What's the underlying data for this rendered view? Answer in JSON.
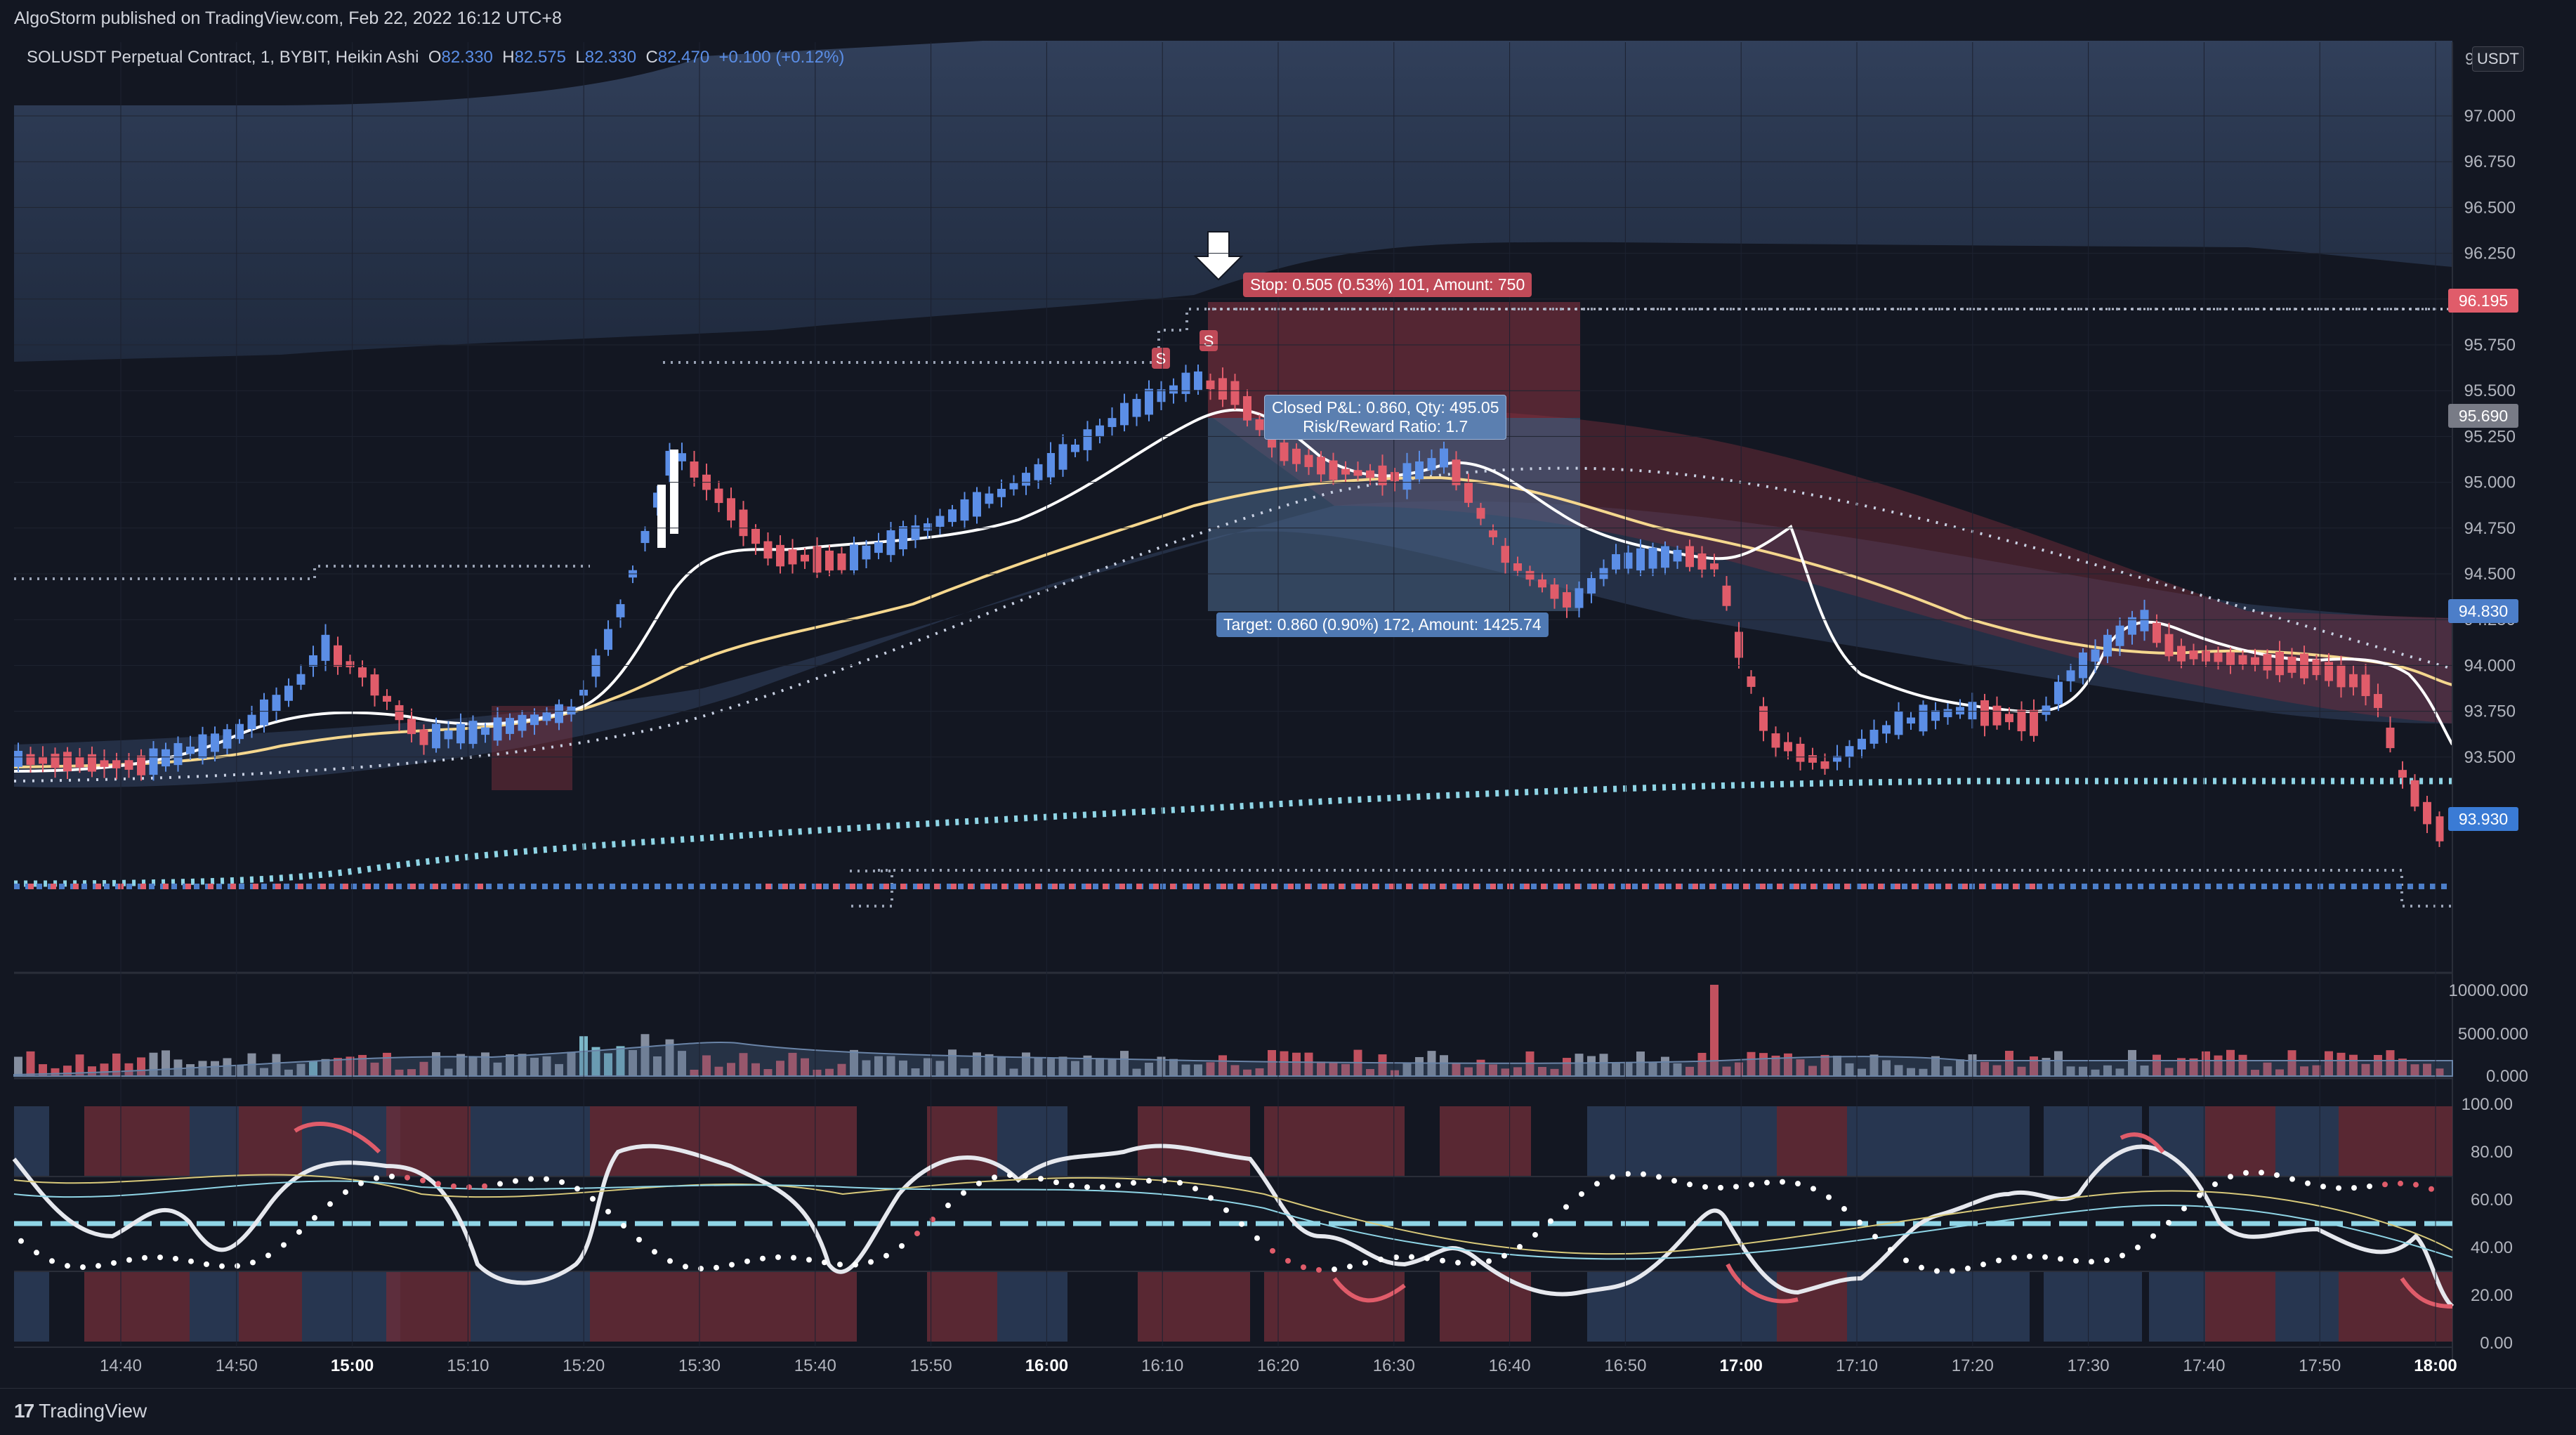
{
  "header": {
    "published": "AlgoStorm published on TradingView.com, Feb 22, 2022 16:12 UTC+8"
  },
  "legend": {
    "symbol": "SOLUSDT Perpetual Contract, 1, BYBIT, Heikin Ashi",
    "o_label": "O",
    "o": "82.330",
    "h_label": "H",
    "h": "82.575",
    "l_label": "L",
    "l": "82.330",
    "c_label": "C",
    "c": "82.470",
    "change": "+0.100 (+0.12%)"
  },
  "currency": "USDT",
  "price_axis": {
    "ticks": [
      "97.000",
      "96.750",
      "96.500",
      "96.250",
      "96.000",
      "95.750",
      "95.500",
      "95.250",
      "95.000",
      "94.750",
      "94.500",
      "94.250",
      "94.000",
      "93.750",
      "93.500"
    ],
    "top_partial": "97",
    "labels": [
      {
        "text": "96.195",
        "color": "#e05c6a"
      },
      {
        "text": "95.690",
        "color": "#787b86"
      },
      {
        "text": "94.830",
        "color": "#4c7ec9"
      },
      {
        "text": "93.930",
        "color": "#3a7bd5"
      }
    ]
  },
  "volume_axis": {
    "ticks": [
      "10000.000",
      "5000.000",
      "0.000"
    ]
  },
  "osc_axis": {
    "ticks": [
      "100.00",
      "80.00",
      "60.00",
      "40.00",
      "20.00",
      "0.00"
    ]
  },
  "time_axis": {
    "labels": [
      "14:40",
      "14:50",
      "15:00",
      "15:10",
      "15:20",
      "15:30",
      "15:40",
      "15:50",
      "16:00",
      "16:10",
      "16:20",
      "16:30",
      "16:40",
      "16:50",
      "17:00",
      "17:10",
      "17:20",
      "17:30",
      "17:40",
      "17:50",
      "18:00"
    ],
    "bold": [
      "15:00",
      "16:00",
      "17:00",
      "18:00"
    ]
  },
  "position": {
    "stop": "Stop: 0.505 (0.53%) 101, Amount: 750",
    "closed_line1": "Closed P&L: 0.860, Qty: 495.05",
    "closed_line2": "Risk/Reward Ratio: 1.7",
    "target": "Target: 0.860 (0.90%) 172, Amount: 1425.74"
  },
  "signals": [
    "S",
    "S"
  ],
  "footer": {
    "brand": "TradingView"
  },
  "colors": {
    "background": "#131722",
    "bull": "#5b8ee6",
    "bear": "#e05c6a",
    "cloud": "#2a3a55",
    "ema_fast": "#ffffff",
    "ema_slow": "#f5d78e"
  }
}
